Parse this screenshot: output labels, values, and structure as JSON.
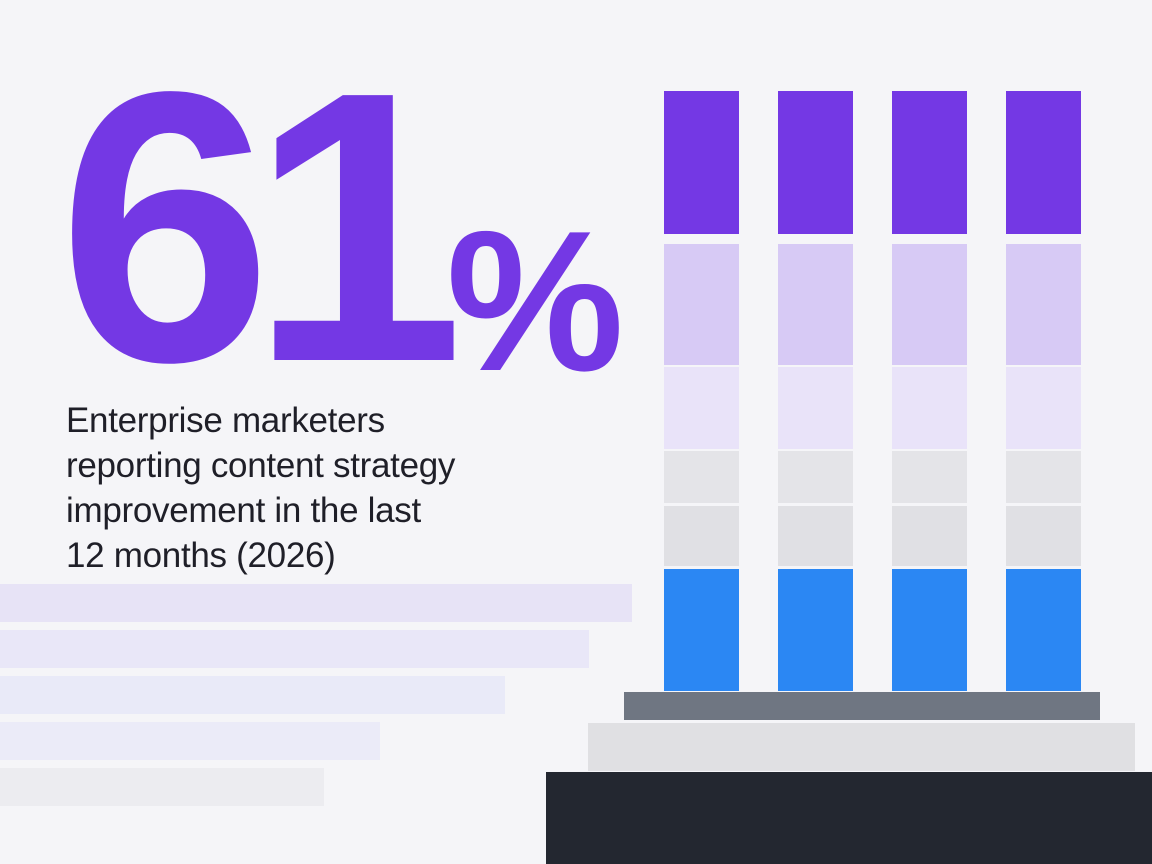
{
  "headline": {
    "value": "61",
    "unit": "%"
  },
  "caption_lines": [
    "Enterprise marketers",
    "reporting content strategy",
    "improvement in the last",
    "12 months (2026)"
  ],
  "colors": {
    "accent": "#7438e4",
    "text": "#1f1f28",
    "background": "#f5f5f8"
  },
  "chart_data": {
    "type": "bar",
    "value_percent": 61,
    "bars": 4,
    "segments": [
      {
        "color": "#7438e4"
      },
      {
        "color": "#d7caf5"
      },
      {
        "color": "#e9e3f9"
      },
      {
        "color": "#e4e4e8"
      },
      {
        "color": "#e0e0e4"
      },
      {
        "color": "#2b87f3"
      }
    ],
    "base_colors": [
      "#6f7682",
      "#e0e0e3",
      "#232730"
    ],
    "guide_bar_colors": [
      "#e7e3f6",
      "#e9e7f8",
      "#e9eaf8",
      "#ebebf8",
      "#ececf0"
    ]
  }
}
